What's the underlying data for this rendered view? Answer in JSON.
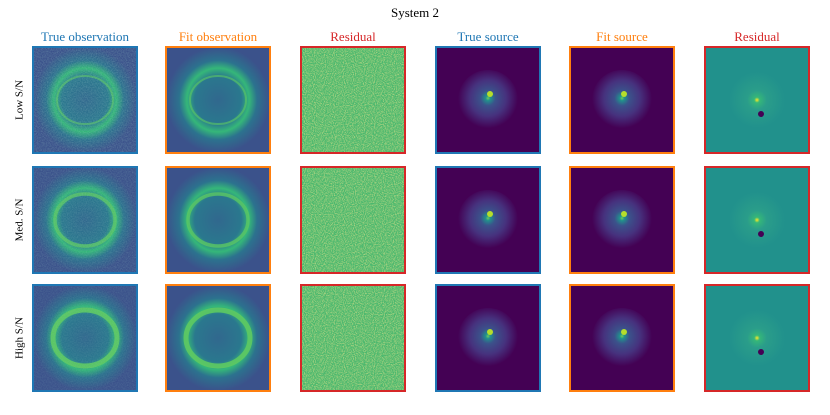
{
  "title": "System 2",
  "columns": [
    {
      "label": "True observation",
      "color": "#1f77b4"
    },
    {
      "label": "Fit observation",
      "color": "#ff7f0e"
    },
    {
      "label": "Residual",
      "color": "#d62728"
    },
    {
      "label": "True source",
      "color": "#1f77b4"
    },
    {
      "label": "Fit source",
      "color": "#ff7f0e"
    },
    {
      "label": "Residual",
      "color": "#d62728"
    }
  ],
  "rows": [
    "Low S/N",
    "Med. S/N",
    "High S/N"
  ]
}
